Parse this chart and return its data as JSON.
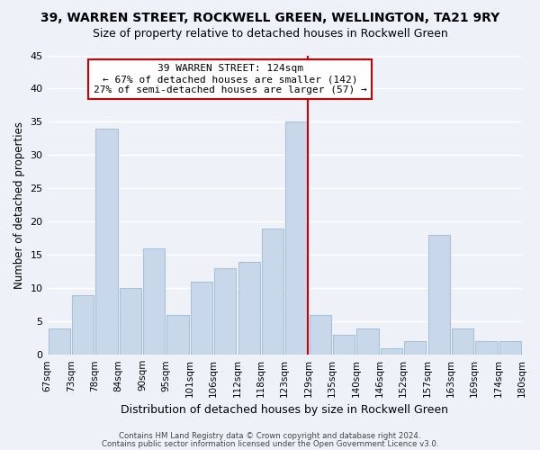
{
  "title": "39, WARREN STREET, ROCKWELL GREEN, WELLINGTON, TA21 9RY",
  "subtitle": "Size of property relative to detached houses in Rockwell Green",
  "xlabel": "Distribution of detached houses by size in Rockwell Green",
  "ylabel": "Number of detached properties",
  "footer_line1": "Contains HM Land Registry data © Crown copyright and database right 2024.",
  "footer_line2": "Contains public sector information licensed under the Open Government Licence v3.0.",
  "annotation_title": "39 WARREN STREET: 124sqm",
  "annotation_line2": "← 67% of detached houses are smaller (142)",
  "annotation_line3": "27% of semi-detached houses are larger (57) →",
  "bar_color": "#c8d8ea",
  "bar_edge_color": "#a8c0d8",
  "highlight_line_color": "#cc0000",
  "background_color": "#eef2f8",
  "tick_labels": [
    "67sqm",
    "73sqm",
    "78sqm",
    "84sqm",
    "90sqm",
    "95sqm",
    "101sqm",
    "106sqm",
    "112sqm",
    "118sqm",
    "123sqm",
    "129sqm",
    "135sqm",
    "140sqm",
    "146sqm",
    "152sqm",
    "157sqm",
    "163sqm",
    "169sqm",
    "174sqm",
    "180sqm"
  ],
  "values": [
    4,
    9,
    34,
    10,
    16,
    6,
    11,
    13,
    14,
    19,
    35,
    6,
    3,
    4,
    1,
    2,
    18,
    4,
    2,
    2
  ],
  "highlight_after_index": 10,
  "ylim": [
    0,
    45
  ],
  "yticks": [
    0,
    5,
    10,
    15,
    20,
    25,
    30,
    35,
    40,
    45
  ]
}
